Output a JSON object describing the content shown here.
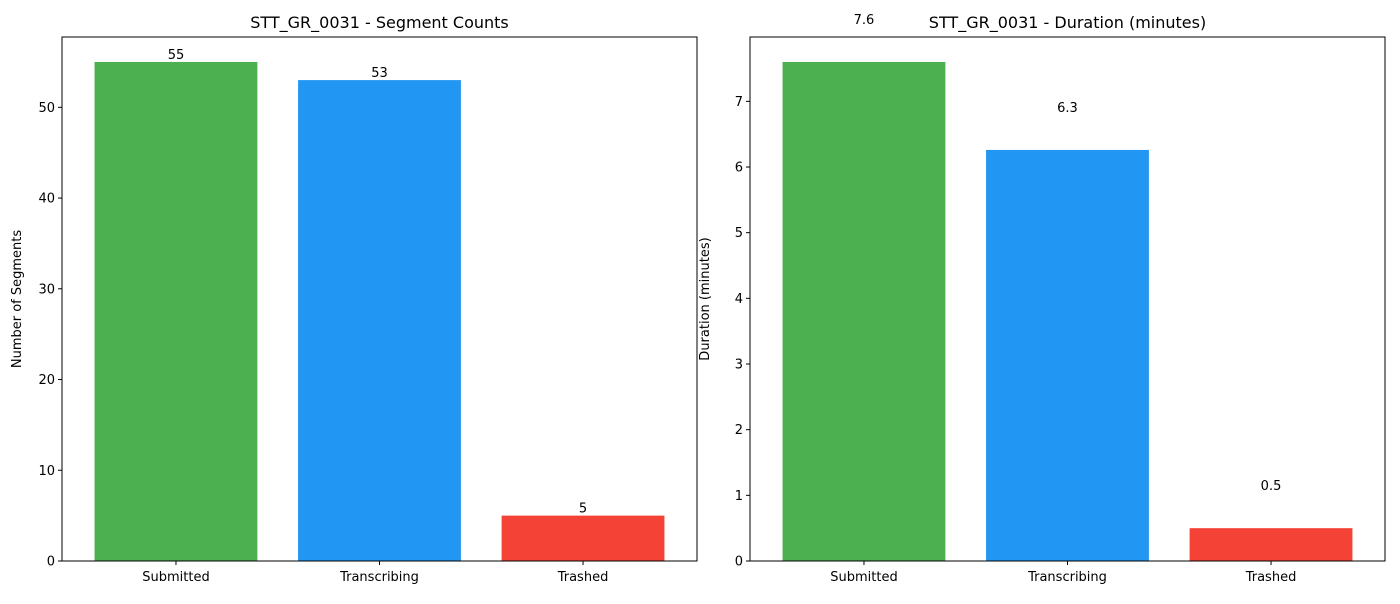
{
  "chart_data": [
    {
      "type": "bar",
      "title": "STT_GR_0031 - Segment Counts",
      "xlabel": "",
      "ylabel": "Number of Segments",
      "categories": [
        "Submitted",
        "Transcribing",
        "Trashed"
      ],
      "values": [
        55,
        53,
        5
      ],
      "value_labels": [
        "55",
        "53",
        "5"
      ],
      "colors": [
        "#4caf50",
        "#2196f3",
        "#f44336"
      ],
      "ylim": [
        0,
        57.75
      ],
      "yticks": [
        0,
        10,
        20,
        30,
        40,
        50
      ],
      "ytick_labels": [
        "0",
        "10",
        "20",
        "30",
        "40",
        "50"
      ],
      "grid": false,
      "legend": "none"
    },
    {
      "type": "bar",
      "title": "STT_GR_0031 - Duration (minutes)",
      "xlabel": "",
      "ylabel": "Duration (minutes)",
      "categories": [
        "Submitted",
        "Transcribing",
        "Trashed"
      ],
      "values": [
        7.6,
        6.26,
        0.5
      ],
      "value_labels": [
        "7.6",
        "6.3",
        "0.5"
      ],
      "colors": [
        "#4caf50",
        "#2196f3",
        "#f44336"
      ],
      "ylim": [
        0,
        7.98
      ],
      "yticks": [
        0,
        1,
        2,
        3,
        4,
        5,
        6,
        7
      ],
      "ytick_labels": [
        "0",
        "1",
        "2",
        "3",
        "4",
        "5",
        "6",
        "7"
      ],
      "grid": false,
      "legend": "none"
    }
  ]
}
